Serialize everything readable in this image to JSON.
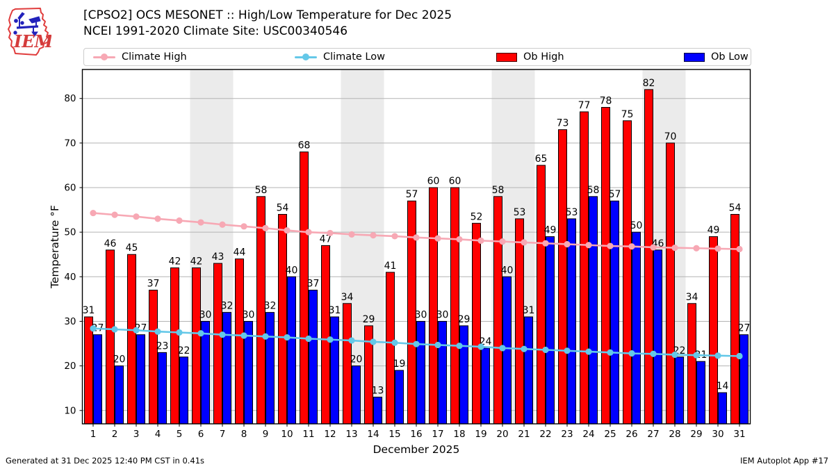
{
  "header": {
    "title_line1": "[CPSO2] OCS MESONET :: High/Low Temperature for Dec 2025",
    "title_line2": "NCEI 1991-2020 Climate Site: USC00340546",
    "logo_text": "IEM"
  },
  "legend": {
    "items": [
      {
        "label": "Climate High",
        "type": "line",
        "color": "#f7a8b4"
      },
      {
        "label": "Climate Low",
        "type": "line",
        "color": "#64c8e8"
      },
      {
        "label": "Ob High",
        "type": "patch",
        "color": "#ff0000"
      },
      {
        "label": "Ob Low",
        "type": "patch",
        "color": "#0000ff"
      }
    ]
  },
  "chart_data": {
    "type": "bar",
    "title": "[CPSO2] OCS MESONET :: High/Low Temperature for Dec 2025",
    "xlabel": "December 2025",
    "ylabel": "Temperature °F",
    "x": [
      1,
      2,
      3,
      4,
      5,
      6,
      7,
      8,
      9,
      10,
      11,
      12,
      13,
      14,
      15,
      16,
      17,
      18,
      19,
      20,
      21,
      22,
      23,
      24,
      25,
      26,
      27,
      28,
      29,
      30,
      31
    ],
    "series": [
      {
        "name": "Ob High",
        "type": "bar",
        "color": "#ff0000",
        "values": [
          31,
          46,
          45,
          37,
          42,
          42,
          43,
          44,
          58,
          54,
          68,
          47,
          34,
          29,
          41,
          57,
          60,
          60,
          52,
          58,
          53,
          65,
          73,
          77,
          78,
          75,
          82,
          70,
          34,
          49,
          54
        ]
      },
      {
        "name": "Ob Low",
        "type": "bar",
        "color": "#0000ff",
        "values": [
          27,
          20,
          27,
          23,
          22,
          30,
          32,
          30,
          32,
          40,
          37,
          31,
          20,
          13,
          19,
          30,
          30,
          29,
          24,
          40,
          31,
          49,
          53,
          58,
          57,
          50,
          46,
          22,
          21,
          14,
          27
        ]
      },
      {
        "name": "Climate High",
        "type": "line",
        "color": "#f7a8b4",
        "values": [
          54.3,
          53.9,
          53.5,
          53.0,
          52.6,
          52.2,
          51.7,
          51.3,
          50.9,
          50.4,
          50.0,
          49.8,
          49.5,
          49.3,
          49.1,
          48.8,
          48.6,
          48.4,
          48.1,
          47.9,
          47.7,
          47.5,
          47.3,
          47.1,
          46.9,
          46.8,
          46.6,
          46.5,
          46.4,
          46.3,
          46.2
        ]
      },
      {
        "name": "Climate Low",
        "type": "line",
        "color": "#64c8e8",
        "values": [
          28.4,
          28.2,
          28.0,
          27.7,
          27.5,
          27.3,
          27.0,
          26.8,
          26.6,
          26.4,
          26.1,
          25.9,
          25.7,
          25.4,
          25.2,
          24.9,
          24.7,
          24.5,
          24.3,
          24.0,
          23.8,
          23.6,
          23.4,
          23.2,
          23.0,
          22.8,
          22.7,
          22.5,
          22.4,
          22.3,
          22.2
        ]
      }
    ],
    "ylim": [
      7,
      86.5
    ],
    "yticks": [
      10,
      20,
      30,
      40,
      50,
      60,
      70,
      80
    ],
    "grid": true,
    "legend_position": "top",
    "weekend_bands": [
      [
        6,
        7
      ],
      [
        13,
        14
      ],
      [
        20,
        21
      ],
      [
        27,
        28
      ]
    ],
    "band_color": "#ebebeb",
    "grid_color": "#b3b3b3"
  },
  "footer": {
    "generated": "Generated at 31 Dec 2025 12:40 PM CST in 0.41s",
    "app": "IEM Autoplot App #17"
  }
}
